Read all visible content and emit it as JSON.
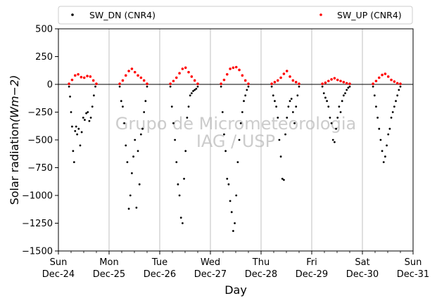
{
  "chart_data": {
    "type": "scatter",
    "xlabel": "Day",
    "ylabel": "Solar radiation",
    "ylabel_unit": "(Wm−2)",
    "ylim": [
      -1500,
      500
    ],
    "yticks": [
      500,
      250,
      0,
      -250,
      -500,
      -750,
      -1000,
      -1250,
      -1500
    ],
    "xlim": [
      0,
      7
    ],
    "x_unit": "days since Sun Dec-24",
    "xticks": [
      {
        "day": "Sun",
        "date": "Dec-24"
      },
      {
        "day": "Mon",
        "date": "Dec-25"
      },
      {
        "day": "Tue",
        "date": "Dec-26"
      },
      {
        "day": "Wed",
        "date": "Dec-27"
      },
      {
        "day": "Thu",
        "date": "Dec-28"
      },
      {
        "day": "Fri",
        "date": "Dec-29"
      },
      {
        "day": "Sat",
        "date": "Dec-30"
      },
      {
        "day": "Sun",
        "date": "Dec-31"
      }
    ],
    "grid": "vertical",
    "legend_position": "top",
    "watermark": [
      "Grupo de Micrometeorologia",
      "IAG / USP"
    ],
    "series": [
      {
        "name": "SW_DN (CNR4)",
        "color": "#000000",
        "x": [
          0.21,
          0.23,
          0.25,
          0.27,
          0.29,
          0.31,
          0.33,
          0.35,
          0.37,
          0.4,
          0.43,
          0.46,
          0.49,
          0.52,
          0.55,
          0.58,
          0.61,
          0.64,
          0.67,
          0.7,
          0.73,
          1.21,
          1.24,
          1.27,
          1.3,
          1.33,
          1.36,
          1.39,
          1.42,
          1.45,
          1.48,
          1.51,
          1.54,
          1.57,
          1.6,
          1.63,
          1.66,
          1.69,
          1.72,
          1.75,
          2.21,
          2.24,
          2.27,
          2.3,
          2.33,
          2.36,
          2.39,
          2.42,
          2.45,
          2.48,
          2.51,
          2.54,
          2.57,
          2.6,
          2.63,
          2.66,
          2.69,
          2.72,
          2.75,
          3.21,
          3.24,
          3.27,
          3.3,
          3.33,
          3.36,
          3.39,
          3.42,
          3.45,
          3.48,
          3.51,
          3.54,
          3.57,
          3.6,
          3.63,
          3.66,
          3.69,
          3.72,
          3.75,
          4.21,
          4.24,
          4.27,
          4.3,
          4.33,
          4.36,
          4.39,
          4.42,
          4.45,
          4.48,
          4.51,
          4.54,
          4.57,
          4.6,
          4.63,
          4.66,
          4.69,
          4.72,
          4.75,
          5.21,
          5.24,
          5.27,
          5.3,
          5.33,
          5.36,
          5.39,
          5.42,
          5.45,
          5.48,
          5.51,
          5.54,
          5.57,
          5.6,
          5.63,
          5.66,
          5.69,
          5.72,
          5.75,
          6.21,
          6.24,
          6.27,
          6.3,
          6.33,
          6.36,
          6.39,
          6.42,
          6.45,
          6.48,
          6.51,
          6.54,
          6.57,
          6.6,
          6.63,
          6.66,
          6.69,
          6.72,
          6.75
        ],
        "y": [
          -20,
          -110,
          -250,
          -380,
          -600,
          -700,
          -420,
          -380,
          -450,
          -400,
          -550,
          -430,
          -300,
          -320,
          -260,
          -250,
          -330,
          -300,
          -200,
          -100,
          -20,
          -20,
          -150,
          -200,
          -350,
          -550,
          -700,
          -1120,
          -1000,
          -800,
          -650,
          -500,
          -1110,
          -600,
          -900,
          -450,
          -400,
          -250,
          -150,
          -20,
          -20,
          -200,
          -350,
          -500,
          -700,
          -900,
          -1000,
          -1200,
          -1250,
          -850,
          -600,
          -300,
          -200,
          -100,
          -80,
          -60,
          -50,
          -40,
          -20,
          -20,
          -250,
          -450,
          -600,
          -850,
          -900,
          -1050,
          -1150,
          -1320,
          -1250,
          -1000,
          -700,
          -500,
          -350,
          -250,
          -150,
          -100,
          -50,
          -20,
          -20,
          -100,
          -150,
          -200,
          -300,
          -500,
          -650,
          -850,
          -860,
          -450,
          -300,
          -200,
          -150,
          -130,
          -250,
          -350,
          -200,
          -100,
          -20,
          -20,
          -80,
          -120,
          -150,
          -200,
          -300,
          -350,
          -500,
          -520,
          -400,
          -300,
          -200,
          -250,
          -150,
          -100,
          -80,
          -50,
          -30,
          -20,
          -20,
          -100,
          -200,
          -300,
          -400,
          -500,
          -600,
          -700,
          -650,
          -550,
          -450,
          -400,
          -300,
          -250,
          -200,
          -150,
          -100,
          -50,
          -20
        ]
      },
      {
        "name": "SW_UP (CNR4)",
        "color": "#ff0000",
        "x": [
          0.21,
          0.27,
          0.33,
          0.39,
          0.45,
          0.51,
          0.57,
          0.63,
          0.69,
          0.75,
          1.21,
          1.27,
          1.33,
          1.39,
          1.45,
          1.51,
          1.57,
          1.63,
          1.69,
          1.75,
          2.21,
          2.27,
          2.33,
          2.39,
          2.45,
          2.51,
          2.57,
          2.63,
          2.69,
          2.75,
          3.21,
          3.27,
          3.33,
          3.39,
          3.45,
          3.51,
          3.57,
          3.63,
          3.69,
          3.75,
          4.21,
          4.27,
          4.33,
          4.39,
          4.45,
          4.51,
          4.57,
          4.63,
          4.69,
          4.75,
          5.21,
          5.27,
          5.33,
          5.39,
          5.45,
          5.51,
          5.57,
          5.63,
          5.69,
          5.75,
          6.21,
          6.27,
          6.33,
          6.39,
          6.45,
          6.51,
          6.57,
          6.63,
          6.69,
          6.75
        ],
        "y": [
          5,
          40,
          80,
          90,
          65,
          60,
          75,
          70,
          35,
          5,
          5,
          35,
          80,
          120,
          140,
          110,
          80,
          60,
          35,
          5,
          5,
          30,
          60,
          100,
          140,
          150,
          110,
          70,
          35,
          5,
          5,
          40,
          90,
          140,
          150,
          155,
          130,
          80,
          35,
          5,
          5,
          20,
          35,
          60,
          95,
          120,
          70,
          35,
          20,
          5,
          5,
          15,
          30,
          45,
          55,
          40,
          30,
          20,
          10,
          5,
          5,
          30,
          60,
          85,
          95,
          70,
          40,
          25,
          10,
          5
        ]
      }
    ]
  }
}
